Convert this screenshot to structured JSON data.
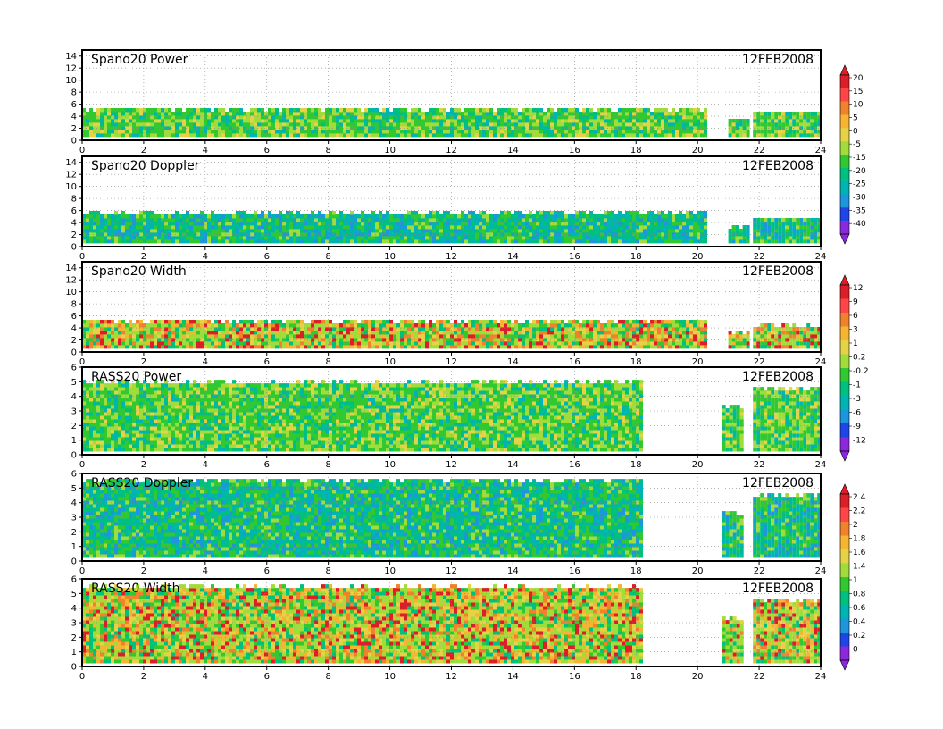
{
  "chart_data": [
    {
      "type": "heatmap",
      "title": "Spano20 Power",
      "date": "12FEB2008",
      "xlim": [
        0,
        24
      ],
      "xticks": [
        "0",
        "2",
        "4",
        "6",
        "8",
        "10",
        "12",
        "14",
        "16",
        "18",
        "20",
        "22",
        "24"
      ],
      "ylim": [
        0,
        15
      ],
      "yticks": [
        "0",
        "2",
        "4",
        "6",
        "8",
        "10",
        "12",
        "14"
      ],
      "data_coverage": [
        [
          0,
          20.2,
          5.0
        ],
        [
          21.0,
          21.6,
          3.2
        ],
        [
          21.8,
          24.0,
          4.5
        ]
      ],
      "palette": "power"
    },
    {
      "type": "heatmap",
      "title": "Spano20 Doppler",
      "date": "12FEB2008",
      "xlim": [
        0,
        24
      ],
      "xticks": [
        "0",
        "2",
        "4",
        "6",
        "8",
        "10",
        "12",
        "14",
        "16",
        "18",
        "20",
        "22",
        "24"
      ],
      "ylim": [
        0,
        15
      ],
      "yticks": [
        "0",
        "2",
        "4",
        "6",
        "8",
        "10",
        "12",
        "14"
      ],
      "data_coverage": [
        [
          0,
          20.2,
          5.5
        ],
        [
          21.0,
          21.6,
          3.2
        ],
        [
          21.8,
          24.0,
          4.5
        ]
      ],
      "palette": "doppler"
    },
    {
      "type": "heatmap",
      "title": "Spano20 Width",
      "date": "12FEB2008",
      "xlim": [
        0,
        24
      ],
      "xticks": [
        "0",
        "2",
        "4",
        "6",
        "8",
        "10",
        "12",
        "14",
        "16",
        "18",
        "20",
        "22",
        "24"
      ],
      "ylim": [
        0,
        15
      ],
      "yticks": [
        "0",
        "2",
        "4",
        "6",
        "8",
        "10",
        "12",
        "14"
      ],
      "data_coverage": [
        [
          0,
          20.2,
          5.0
        ],
        [
          21.0,
          21.6,
          3.2
        ],
        [
          21.8,
          24.0,
          4.3
        ]
      ],
      "palette": "width"
    },
    {
      "type": "heatmap",
      "title": "RASS20 Power",
      "date": "12FEB2008",
      "xlim": [
        0,
        24
      ],
      "xticks": [
        "0",
        "2",
        "4",
        "6",
        "8",
        "10",
        "12",
        "14",
        "16",
        "18",
        "20",
        "22",
        "24"
      ],
      "ylim": [
        0,
        6
      ],
      "yticks": [
        "0",
        "1",
        "2",
        "3",
        "4",
        "5",
        "6"
      ],
      "data_coverage": [
        [
          0,
          18.2,
          5.0
        ],
        [
          20.8,
          21.4,
          3.3
        ],
        [
          21.8,
          24.0,
          4.6
        ]
      ],
      "palette": "power"
    },
    {
      "type": "heatmap",
      "title": "RASS20 Doppler",
      "date": "12FEB2008",
      "xlim": [
        0,
        24
      ],
      "xticks": [
        "0",
        "2",
        "4",
        "6",
        "8",
        "10",
        "12",
        "14",
        "16",
        "18",
        "20",
        "22",
        "24"
      ],
      "ylim": [
        0,
        6
      ],
      "yticks": [
        "0",
        "1",
        "2",
        "3",
        "4",
        "5",
        "6"
      ],
      "data_coverage": [
        [
          0,
          18.2,
          5.6
        ],
        [
          20.8,
          21.4,
          3.3
        ],
        [
          21.8,
          24.0,
          4.6
        ]
      ],
      "palette": "doppler"
    },
    {
      "type": "heatmap",
      "title": "RASS20 Width",
      "date": "12FEB2008",
      "xlim": [
        0,
        24
      ],
      "xticks": [
        "0",
        "2",
        "4",
        "6",
        "8",
        "10",
        "12",
        "14",
        "16",
        "18",
        "20",
        "22",
        "24"
      ],
      "ylim": [
        0,
        6
      ],
      "yticks": [
        "0",
        "1",
        "2",
        "3",
        "4",
        "5",
        "6"
      ],
      "data_coverage": [
        [
          0,
          18.2,
          5.5
        ],
        [
          20.8,
          21.4,
          3.3
        ],
        [
          21.8,
          24.0,
          4.6
        ]
      ],
      "palette": "width"
    }
  ],
  "colorbars": [
    {
      "name": "power-colorbar",
      "labels": [
        "20",
        "15",
        "10",
        "5",
        "0",
        "-5",
        "-15",
        "-20",
        "-25",
        "-30",
        "-35",
        "-40"
      ],
      "colors": [
        "#dc1e28",
        "#ff4646",
        "#f0822d",
        "#f5b432",
        "#e6d246",
        "#a0dc3c",
        "#32c832",
        "#00c080",
        "#00b4b4",
        "#1e96dc",
        "#1e46e6",
        "#8c28dc"
      ]
    },
    {
      "name": "width-colorbar",
      "labels": [
        "12",
        "9",
        "6",
        "3",
        "1",
        "0.2",
        "-0.2",
        "-1",
        "-3",
        "-6",
        "-9",
        "-12"
      ],
      "colors": [
        "#dc1e28",
        "#ff4646",
        "#f0822d",
        "#f5b432",
        "#e6d246",
        "#a0dc3c",
        "#32c832",
        "#00c080",
        "#00b4b4",
        "#1e96dc",
        "#1e46e6",
        "#8c28dc"
      ]
    },
    {
      "name": "rass-width-colorbar",
      "labels": [
        "2.4",
        "2.2",
        "2",
        "1.8",
        "1.6",
        "1.4",
        "1",
        "0.8",
        "0.6",
        "0.4",
        "0.2",
        "0"
      ],
      "colors": [
        "#dc1e28",
        "#ff4646",
        "#f0822d",
        "#f5b432",
        "#e6d246",
        "#a0dc3c",
        "#32c832",
        "#00c080",
        "#00b4b4",
        "#1e96dc",
        "#1e46e6",
        "#8c28dc"
      ]
    }
  ]
}
